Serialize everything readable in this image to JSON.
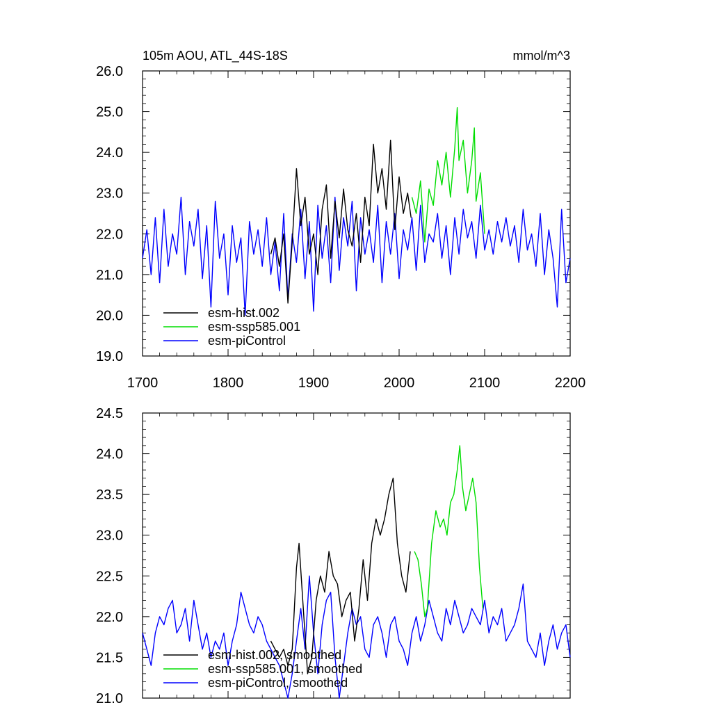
{
  "chart_data": [
    {
      "type": "line",
      "title": "105m AOU, ATL_44S-18S",
      "units": "mmol/m^3",
      "xlim": [
        1700,
        2200
      ],
      "ylim": [
        19.0,
        26.0
      ],
      "xticks": [
        "1700",
        "1800",
        "1900",
        "2000",
        "2100",
        "2200"
      ],
      "yticks": [
        "19.0",
        "20.0",
        "21.0",
        "22.0",
        "23.0",
        "24.0",
        "25.0",
        "26.0"
      ],
      "grid": false,
      "legend_position": "bottom-left",
      "series": [
        {
          "name": "esm-hist.002",
          "color": "#000000",
          "x": [
            1850,
            1855,
            1860,
            1865,
            1870,
            1875,
            1880,
            1885,
            1890,
            1895,
            1900,
            1905,
            1910,
            1915,
            1920,
            1925,
            1930,
            1935,
            1940,
            1945,
            1950,
            1955,
            1960,
            1965,
            1970,
            1975,
            1980,
            1985,
            1990,
            1995,
            2000,
            2005,
            2010,
            2014
          ],
          "y": [
            21.5,
            21.9,
            21.2,
            22.0,
            20.3,
            21.8,
            23.6,
            22.2,
            22.9,
            21.5,
            22.0,
            21.0,
            22.6,
            23.2,
            21.4,
            22.8,
            21.9,
            23.1,
            22.1,
            21.7,
            22.5,
            21.3,
            22.9,
            22.2,
            24.2,
            23.0,
            23.6,
            22.6,
            24.3,
            22.1,
            23.4,
            22.5,
            23.0,
            22.4
          ]
        },
        {
          "name": "esm-ssp585.001",
          "color": "#00dd00",
          "x": [
            2015,
            2020,
            2025,
            2030,
            2035,
            2040,
            2045,
            2050,
            2055,
            2060,
            2065,
            2068,
            2070,
            2075,
            2080,
            2085,
            2088,
            2090,
            2095,
            2100
          ],
          "y": [
            22.9,
            22.5,
            23.3,
            21.8,
            23.1,
            22.7,
            23.8,
            23.2,
            24.0,
            22.9,
            24.1,
            25.1,
            23.8,
            24.3,
            23.0,
            23.8,
            24.6,
            22.8,
            23.5,
            22.0
          ]
        },
        {
          "name": "esm-piControl",
          "color": "#0000ff",
          "x": [
            1700,
            1705,
            1710,
            1715,
            1720,
            1725,
            1730,
            1735,
            1740,
            1745,
            1750,
            1755,
            1760,
            1765,
            1770,
            1775,
            1780,
            1785,
            1790,
            1795,
            1800,
            1805,
            1810,
            1815,
            1820,
            1825,
            1830,
            1835,
            1840,
            1845,
            1850,
            1855,
            1860,
            1865,
            1870,
            1875,
            1880,
            1885,
            1890,
            1895,
            1900,
            1905,
            1910,
            1915,
            1920,
            1925,
            1930,
            1935,
            1940,
            1945,
            1950,
            1955,
            1960,
            1965,
            1970,
            1975,
            1980,
            1985,
            1990,
            1995,
            2000,
            2005,
            2010,
            2015,
            2020,
            2025,
            2030,
            2035,
            2040,
            2045,
            2050,
            2055,
            2060,
            2065,
            2070,
            2075,
            2080,
            2085,
            2090,
            2095,
            2100,
            2105,
            2110,
            2115,
            2120,
            2125,
            2130,
            2135,
            2140,
            2145,
            2150,
            2155,
            2160,
            2165,
            2170,
            2175,
            2180,
            2185,
            2190,
            2195,
            2200
          ],
          "y": [
            21.4,
            22.1,
            21.0,
            22.4,
            20.8,
            22.6,
            21.2,
            22.0,
            21.5,
            22.9,
            21.0,
            22.3,
            21.7,
            22.6,
            20.9,
            22.2,
            20.2,
            22.8,
            21.4,
            22.0,
            20.5,
            22.2,
            21.3,
            21.9,
            20.0,
            22.3,
            21.5,
            22.1,
            21.2,
            22.4,
            21.0,
            21.8,
            20.6,
            22.5,
            20.4,
            22.0,
            21.3,
            22.6,
            20.9,
            22.3,
            20.1,
            22.7,
            21.4,
            22.2,
            20.8,
            22.9,
            21.1,
            22.4,
            21.7,
            22.8,
            20.6,
            22.4,
            21.5,
            22.1,
            21.3,
            22.7,
            20.8,
            22.3,
            21.5,
            22.5,
            20.9,
            22.1,
            21.6,
            22.4,
            21.1,
            22.7,
            21.3,
            22.0,
            21.8,
            22.5,
            21.4,
            22.2,
            21.0,
            22.4,
            21.5,
            22.6,
            21.9,
            22.3,
            21.4,
            22.7,
            21.6,
            22.1,
            21.5,
            22.3,
            21.8,
            22.4,
            21.7,
            22.2,
            21.3,
            22.6,
            21.6,
            22.0,
            21.2,
            22.5,
            21.0,
            22.1,
            21.4,
            20.2,
            22.6,
            20.8,
            21.4
          ]
        }
      ]
    },
    {
      "type": "line",
      "xlim": [
        1700,
        2200
      ],
      "ylim": [
        21.0,
        24.5
      ],
      "yticks": [
        "21.0",
        "21.5",
        "22.0",
        "22.5",
        "23.0",
        "23.5",
        "24.0",
        "24.5"
      ],
      "grid": false,
      "legend_position": "bottom-left",
      "series": [
        {
          "name": "esm-hist.002, smoothed",
          "color": "#000000",
          "x": [
            1850,
            1855,
            1860,
            1865,
            1870,
            1875,
            1880,
            1883,
            1888,
            1893,
            1898,
            1903,
            1908,
            1913,
            1918,
            1923,
            1928,
            1933,
            1938,
            1943,
            1948,
            1953,
            1958,
            1963,
            1968,
            1973,
            1978,
            1983,
            1988,
            1993,
            1998,
            2003,
            2008,
            2013
          ],
          "y": [
            21.7,
            21.6,
            21.5,
            21.6,
            21.4,
            21.6,
            22.6,
            22.9,
            22.1,
            21.3,
            21.5,
            22.2,
            22.5,
            22.3,
            22.8,
            22.5,
            22.4,
            22.0,
            22.2,
            22.3,
            21.7,
            22.1,
            22.7,
            22.2,
            22.9,
            23.2,
            23.0,
            23.2,
            23.5,
            23.7,
            22.9,
            22.5,
            22.3,
            22.8
          ]
        },
        {
          "name": "esm-ssp585.001, smoothed",
          "color": "#00dd00",
          "x": [
            2018,
            2022,
            2026,
            2030,
            2033,
            2038,
            2043,
            2048,
            2052,
            2056,
            2060,
            2064,
            2068,
            2071,
            2074,
            2078,
            2082,
            2086,
            2090,
            2094,
            2098
          ],
          "y": [
            22.8,
            22.7,
            22.4,
            22.0,
            22.1,
            22.9,
            23.3,
            23.1,
            23.2,
            23.0,
            23.4,
            23.5,
            23.8,
            24.1,
            23.6,
            23.3,
            23.5,
            23.7,
            23.4,
            22.6,
            22.1
          ]
        },
        {
          "name": "esm-piControl, smoothed",
          "color": "#0000ff",
          "x": [
            1700,
            1705,
            1710,
            1715,
            1720,
            1725,
            1730,
            1735,
            1740,
            1745,
            1750,
            1755,
            1760,
            1765,
            1770,
            1775,
            1780,
            1785,
            1790,
            1795,
            1800,
            1805,
            1810,
            1815,
            1820,
            1825,
            1830,
            1835,
            1840,
            1845,
            1850,
            1855,
            1860,
            1865,
            1870,
            1875,
            1880,
            1885,
            1890,
            1895,
            1900,
            1905,
            1910,
            1915,
            1920,
            1925,
            1930,
            1935,
            1940,
            1945,
            1950,
            1955,
            1960,
            1965,
            1970,
            1975,
            1980,
            1985,
            1990,
            1995,
            2000,
            2005,
            2010,
            2015,
            2020,
            2025,
            2030,
            2035,
            2040,
            2045,
            2050,
            2055,
            2060,
            2065,
            2070,
            2075,
            2080,
            2085,
            2090,
            2095,
            2100,
            2105,
            2110,
            2115,
            2120,
            2125,
            2130,
            2135,
            2140,
            2145,
            2150,
            2155,
            2160,
            2165,
            2170,
            2175,
            2180,
            2185,
            2190,
            2195,
            2200
          ],
          "y": [
            21.8,
            21.6,
            21.4,
            21.8,
            22.0,
            21.9,
            22.1,
            22.2,
            21.8,
            21.9,
            22.1,
            21.7,
            22.2,
            21.9,
            21.6,
            21.8,
            21.5,
            21.7,
            21.6,
            21.8,
            21.4,
            21.7,
            21.9,
            22.3,
            22.1,
            21.9,
            21.8,
            22.0,
            21.9,
            21.7,
            21.6,
            21.5,
            21.4,
            21.2,
            21.0,
            21.3,
            21.7,
            22.1,
            21.6,
            22.5,
            21.8,
            21.3,
            21.9,
            22.2,
            22.3,
            21.5,
            21.0,
            21.4,
            21.8,
            22.1,
            21.9,
            22.0,
            21.6,
            21.5,
            21.9,
            22.0,
            21.8,
            21.5,
            21.9,
            22.0,
            21.7,
            21.6,
            21.4,
            21.8,
            22.0,
            21.7,
            21.9,
            22.2,
            22.0,
            21.8,
            21.7,
            22.1,
            21.9,
            22.2,
            22.0,
            21.8,
            21.9,
            22.1,
            22.0,
            21.9,
            22.2,
            21.8,
            22.0,
            21.9,
            22.1,
            21.7,
            21.8,
            21.9,
            22.1,
            22.4,
            21.7,
            21.6,
            21.5,
            21.8,
            21.4,
            21.7,
            21.9,
            21.6,
            21.8,
            21.9,
            21.5
          ]
        }
      ]
    }
  ]
}
